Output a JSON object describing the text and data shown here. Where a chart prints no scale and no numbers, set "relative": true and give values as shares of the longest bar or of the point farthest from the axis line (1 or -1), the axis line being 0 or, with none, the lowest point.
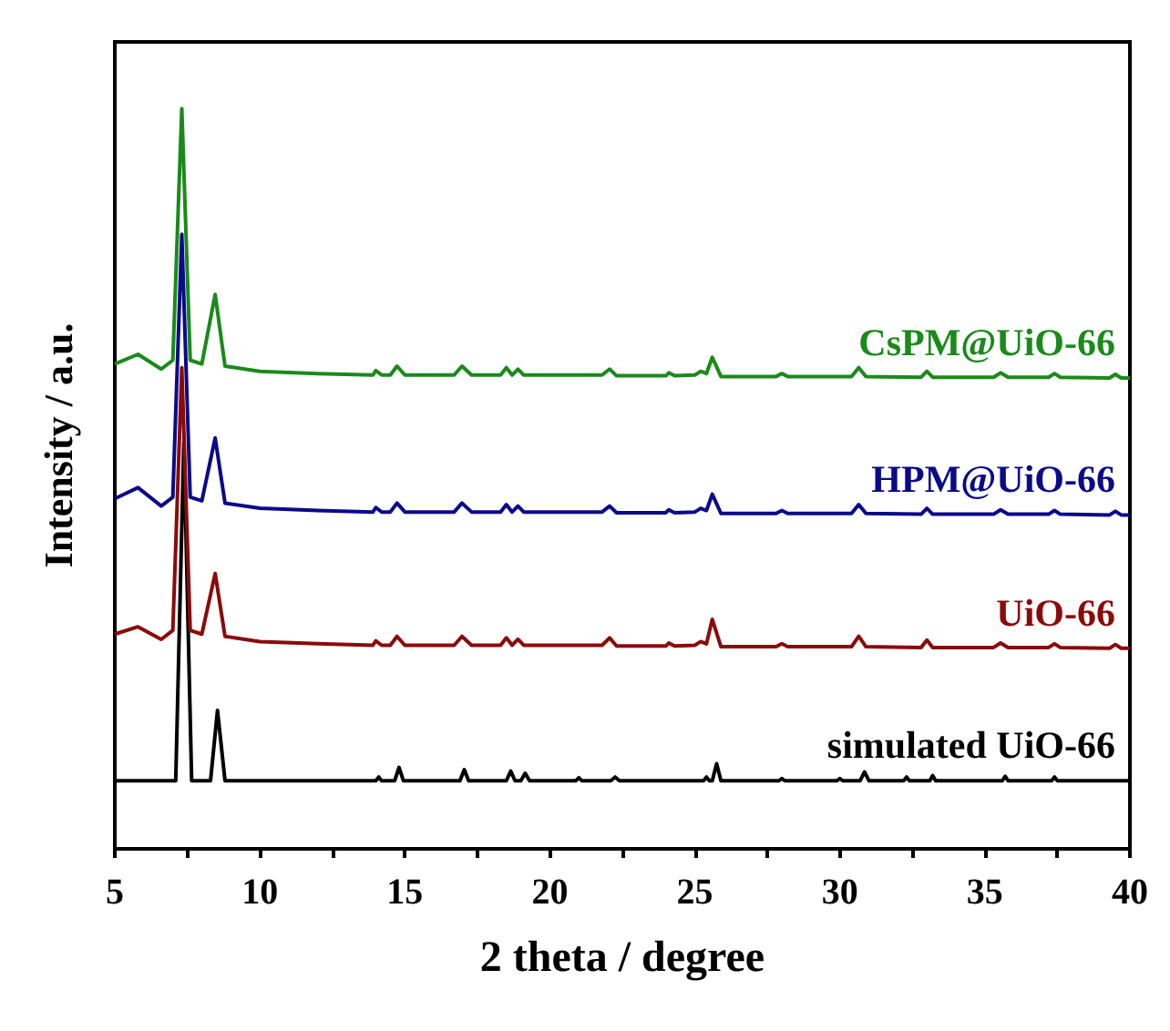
{
  "chart_data": {
    "type": "line",
    "xlabel": "2 theta / degree",
    "ylabel": "Intensity / a.u.",
    "relative": true,
    "xlim": [
      5,
      40
    ],
    "xticks": [
      5,
      10,
      15,
      20,
      25,
      30,
      35,
      40
    ],
    "legend": false,
    "marker": "none",
    "line_style": "solid",
    "series": [
      {
        "name": "simulated UiO-66",
        "color": "#000000",
        "x": [
          5,
          7.1,
          7.38,
          7.65,
          8.3,
          8.54,
          8.8,
          14.0,
          14.1,
          14.2,
          14.65,
          14.8,
          14.95,
          16.9,
          17.05,
          17.2,
          18.5,
          18.65,
          18.8,
          19.0,
          19.15,
          19.3,
          20.9,
          21.0,
          21.1,
          22.1,
          22.25,
          22.4,
          25.3,
          25.4,
          25.5,
          25.6,
          25.75,
          25.9,
          27.9,
          28.0,
          28.1,
          29.9,
          30.0,
          30.1,
          30.7,
          30.85,
          31.0,
          32.2,
          32.3,
          32.4,
          33.1,
          33.2,
          33.3,
          35.6,
          35.7,
          35.8,
          37.3,
          37.4,
          37.5,
          39.9,
          40
        ],
        "values": [
          0.092,
          0.092,
          0.55,
          0.092,
          0.092,
          0.187,
          0.092,
          0.092,
          0.097,
          0.092,
          0.092,
          0.11,
          0.092,
          0.092,
          0.107,
          0.092,
          0.092,
          0.105,
          0.092,
          0.092,
          0.102,
          0.092,
          0.092,
          0.096,
          0.092,
          0.092,
          0.097,
          0.092,
          0.092,
          0.097,
          0.092,
          0.092,
          0.115,
          0.092,
          0.092,
          0.095,
          0.092,
          0.092,
          0.095,
          0.092,
          0.092,
          0.104,
          0.092,
          0.092,
          0.097,
          0.092,
          0.092,
          0.099,
          0.092,
          0.092,
          0.098,
          0.092,
          0.092,
          0.097,
          0.092,
          0.092,
          0.092
        ]
      },
      {
        "name": "UiO-66",
        "color": "#8b0a0a",
        "x": [
          5,
          5.8,
          6.6,
          7.0,
          7.31,
          7.6,
          8.0,
          8.46,
          8.8,
          10,
          12,
          13.9,
          14.0,
          14.2,
          14.5,
          14.73,
          15.0,
          16.7,
          16.97,
          17.3,
          18.3,
          18.5,
          18.7,
          18.9,
          19.1,
          21.8,
          22.06,
          22.3,
          24.0,
          24.1,
          24.3,
          25.0,
          25.2,
          25.4,
          25.6,
          25.9,
          27.8,
          28.0,
          28.2,
          30.4,
          30.65,
          30.9,
          32.8,
          33.0,
          33.2,
          35.3,
          35.54,
          35.8,
          37.2,
          37.4,
          37.6,
          39.3,
          39.5,
          39.7,
          40
        ],
        "values": [
          0.29,
          0.3,
          0.283,
          0.295,
          0.65,
          0.295,
          0.29,
          0.372,
          0.287,
          0.28,
          0.277,
          0.275,
          0.281,
          0.275,
          0.275,
          0.287,
          0.275,
          0.275,
          0.287,
          0.275,
          0.275,
          0.285,
          0.275,
          0.283,
          0.275,
          0.275,
          0.285,
          0.274,
          0.274,
          0.278,
          0.274,
          0.275,
          0.28,
          0.277,
          0.31,
          0.273,
          0.273,
          0.277,
          0.273,
          0.273,
          0.287,
          0.273,
          0.272,
          0.282,
          0.272,
          0.272,
          0.278,
          0.272,
          0.272,
          0.277,
          0.272,
          0.271,
          0.276,
          0.271,
          0.271
        ]
      },
      {
        "name": "HPM@UiO-66",
        "color": "#0a0a8a",
        "x": [
          5,
          5.8,
          6.6,
          7.0,
          7.31,
          7.6,
          8.0,
          8.46,
          8.8,
          10,
          12,
          13.9,
          14.0,
          14.2,
          14.5,
          14.73,
          15.0,
          16.7,
          16.97,
          17.3,
          18.3,
          18.5,
          18.7,
          18.9,
          19.1,
          21.8,
          22.06,
          22.3,
          24.0,
          24.1,
          24.3,
          25.0,
          25.2,
          25.4,
          25.6,
          25.9,
          27.8,
          28.0,
          28.2,
          30.4,
          30.65,
          30.9,
          32.8,
          33.0,
          33.2,
          35.3,
          35.54,
          35.8,
          37.2,
          37.4,
          37.6,
          39.3,
          39.5,
          39.7,
          40
        ],
        "values": [
          0.473,
          0.488,
          0.463,
          0.475,
          0.83,
          0.475,
          0.47,
          0.555,
          0.467,
          0.46,
          0.457,
          0.455,
          0.461,
          0.455,
          0.455,
          0.467,
          0.455,
          0.455,
          0.467,
          0.455,
          0.455,
          0.465,
          0.455,
          0.463,
          0.455,
          0.455,
          0.463,
          0.454,
          0.454,
          0.458,
          0.454,
          0.455,
          0.46,
          0.457,
          0.479,
          0.453,
          0.453,
          0.457,
          0.453,
          0.453,
          0.465,
          0.453,
          0.452,
          0.46,
          0.452,
          0.452,
          0.458,
          0.452,
          0.452,
          0.457,
          0.452,
          0.451,
          0.456,
          0.451,
          0.451
        ]
      },
      {
        "name": "CsPM@UiO-66",
        "color": "#1a8a1a",
        "x": [
          5,
          5.8,
          6.6,
          7.0,
          7.31,
          7.6,
          8.0,
          8.46,
          8.8,
          10,
          12,
          13.9,
          14.0,
          14.2,
          14.5,
          14.73,
          15.0,
          16.7,
          16.97,
          17.3,
          18.3,
          18.5,
          18.7,
          18.9,
          19.1,
          21.8,
          22.06,
          22.3,
          24.0,
          24.1,
          24.3,
          25.0,
          25.2,
          25.4,
          25.6,
          25.9,
          27.8,
          28.0,
          28.2,
          30.4,
          30.65,
          30.9,
          32.8,
          33.0,
          33.2,
          35.3,
          35.54,
          35.8,
          37.2,
          37.4,
          37.6,
          39.3,
          39.5,
          39.7,
          40
        ],
        "values": [
          0.655,
          0.668,
          0.648,
          0.66,
          1.0,
          0.66,
          0.655,
          0.749,
          0.652,
          0.645,
          0.642,
          0.64,
          0.646,
          0.64,
          0.64,
          0.652,
          0.64,
          0.64,
          0.652,
          0.64,
          0.64,
          0.65,
          0.64,
          0.648,
          0.64,
          0.64,
          0.648,
          0.639,
          0.639,
          0.643,
          0.639,
          0.64,
          0.645,
          0.642,
          0.664,
          0.638,
          0.638,
          0.642,
          0.638,
          0.638,
          0.65,
          0.638,
          0.637,
          0.645,
          0.637,
          0.637,
          0.643,
          0.637,
          0.637,
          0.642,
          0.637,
          0.636,
          0.641,
          0.636,
          0.636
        ]
      }
    ]
  }
}
